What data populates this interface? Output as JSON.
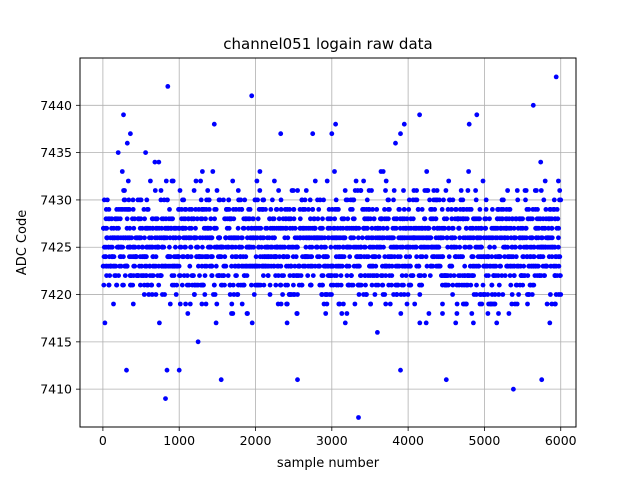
{
  "chart_data": {
    "type": "scatter",
    "title": "channel051 logain raw data",
    "xlabel": "sample number",
    "ylabel": "ADC Code",
    "xlim": [
      -300,
      6200
    ],
    "ylim": [
      7406,
      7445
    ],
    "xticks": [
      0,
      1000,
      2000,
      3000,
      4000,
      5000,
      6000
    ],
    "yticks": [
      7410,
      7415,
      7420,
      7425,
      7430,
      7435,
      7440
    ],
    "grid": true,
    "color": "#0000ff",
    "marker": "dot",
    "n_samples": 6000,
    "x_step": 25,
    "y_min": 7407,
    "y_max": 7443,
    "y_mode": 7425,
    "points": [
      {
        "x": 200,
        "y": 7435
      },
      {
        "x": 270,
        "y": 7439
      },
      {
        "x": 310,
        "y": 7412
      },
      {
        "x": 320,
        "y": 7436
      },
      {
        "x": 360,
        "y": 7437
      },
      {
        "x": 560,
        "y": 7435
      },
      {
        "x": 820,
        "y": 7409
      },
      {
        "x": 840,
        "y": 7412
      },
      {
        "x": 850,
        "y": 7442
      },
      {
        "x": 1000,
        "y": 7412
      },
      {
        "x": 1460,
        "y": 7438
      },
      {
        "x": 1550,
        "y": 7411
      },
      {
        "x": 1950,
        "y": 7441
      },
      {
        "x": 2330,
        "y": 7437
      },
      {
        "x": 2550,
        "y": 7411
      },
      {
        "x": 2750,
        "y": 7437
      },
      {
        "x": 3000,
        "y": 7437
      },
      {
        "x": 3050,
        "y": 7438
      },
      {
        "x": 3350,
        "y": 7407
      },
      {
        "x": 3900,
        "y": 7437
      },
      {
        "x": 3950,
        "y": 7438
      },
      {
        "x": 3900,
        "y": 7412
      },
      {
        "x": 4150,
        "y": 7439
      },
      {
        "x": 4500,
        "y": 7411
      },
      {
        "x": 4800,
        "y": 7438
      },
      {
        "x": 4900,
        "y": 7439
      },
      {
        "x": 5380,
        "y": 7410
      },
      {
        "x": 5640,
        "y": 7440
      },
      {
        "x": 5750,
        "y": 7411
      },
      {
        "x": 5940,
        "y": 7443
      }
    ]
  }
}
